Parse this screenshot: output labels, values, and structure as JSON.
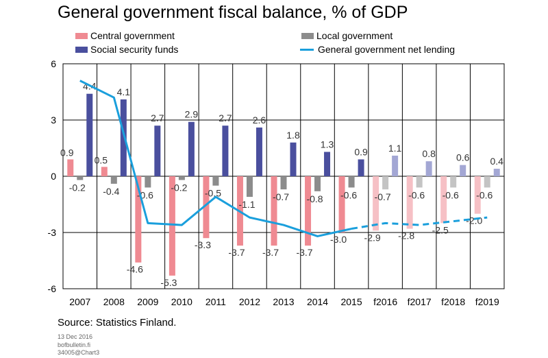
{
  "title": "General government fiscal balance, % of GDP",
  "legend": {
    "central": "Central government",
    "local": "Local government",
    "social": "Social security funds",
    "net": "General government net lending"
  },
  "colors": {
    "central": "#ef8a92",
    "local": "#8c8c8c",
    "social": "#4a4f9e",
    "net": "#1a9fdc",
    "central_forecast": "#f6c0c5",
    "local_forecast": "#c4c4c4",
    "social_forecast": "#a3a7d4"
  },
  "source": "Source: Statistics Finland.",
  "footer": {
    "date": "13 Dec 2016",
    "site": "bofbulletin.fi",
    "code": "34005@Chart3"
  },
  "chart_data": {
    "type": "bar",
    "title": "General government fiscal balance, % of GDP",
    "categories": [
      "2007",
      "2008",
      "2009",
      "2010",
      "2011",
      "2012",
      "2013",
      "2014",
      "2015",
      "f2016",
      "f2017",
      "f2018",
      "f2019"
    ],
    "forecast_from_index": 9,
    "ylim": [
      -6,
      6
    ],
    "yticks": [
      6,
      3,
      0,
      -3,
      -6
    ],
    "grid": true,
    "series": [
      {
        "name": "Central government",
        "type": "bar",
        "values": [
          0.9,
          0.5,
          -4.6,
          -5.3,
          -3.3,
          -3.7,
          -3.7,
          -3.7,
          -3.0,
          -2.9,
          -2.8,
          -2.5,
          -2.0
        ]
      },
      {
        "name": "Local government",
        "type": "bar",
        "values": [
          -0.2,
          -0.4,
          -0.6,
          -0.2,
          -0.5,
          -1.1,
          -0.7,
          -0.8,
          -0.6,
          -0.7,
          -0.6,
          -0.6,
          -0.6
        ]
      },
      {
        "name": "Social security funds",
        "type": "bar",
        "values": [
          4.4,
          4.1,
          2.7,
          2.9,
          2.7,
          2.6,
          1.8,
          1.3,
          0.9,
          1.1,
          0.8,
          0.6,
          0.4
        ]
      },
      {
        "name": "General government net lending",
        "type": "line",
        "values": [
          5.1,
          4.2,
          -2.5,
          -2.6,
          -1.1,
          -2.2,
          -2.6,
          -3.2,
          -2.8,
          -2.5,
          -2.6,
          -2.4,
          -2.2
        ]
      }
    ]
  }
}
